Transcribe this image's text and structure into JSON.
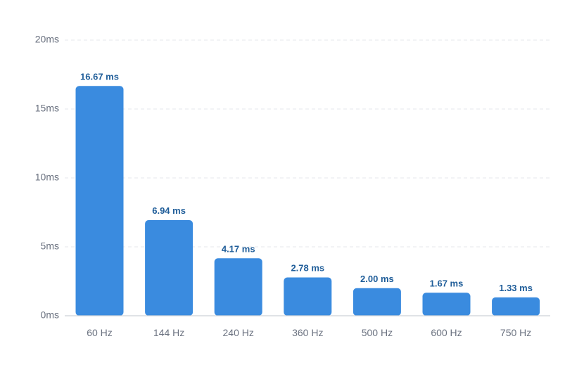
{
  "chart_data": {
    "type": "bar",
    "categories": [
      "60 Hz",
      "144 Hz",
      "240 Hz",
      "360 Hz",
      "500 Hz",
      "600 Hz",
      "750 Hz"
    ],
    "values": [
      16.67,
      6.94,
      4.17,
      2.78,
      2.0,
      1.67,
      1.33
    ],
    "data_labels": [
      "16.67 ms",
      "6.94 ms",
      "4.17 ms",
      "2.78 ms",
      "2.00 ms",
      "1.67 ms",
      "1.33 ms"
    ],
    "y_ticks": [
      0,
      5,
      10,
      15,
      20
    ],
    "y_tick_labels": [
      "0ms",
      "5ms",
      "10ms",
      "15ms",
      "20ms"
    ],
    "ylim": [
      0,
      20
    ],
    "grid": true,
    "legend": "none",
    "colors": {
      "bar": "#3a8bdf",
      "data_label": "#1f5d99",
      "tick_text": "#6b7280",
      "grid": "#e4e7eb"
    }
  }
}
